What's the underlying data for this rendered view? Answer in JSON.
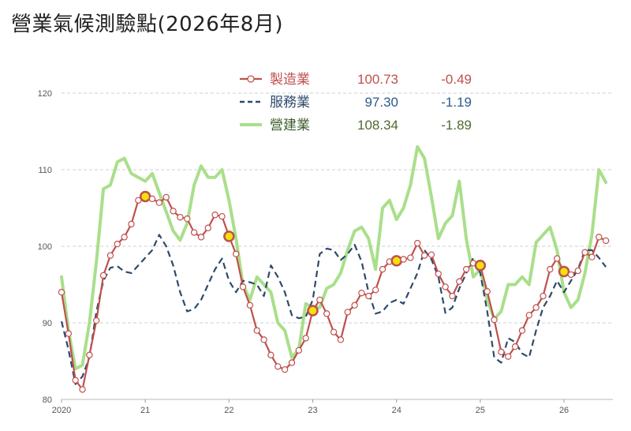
{
  "title": "營業氣候測驗點(2026年8月)",
  "colors": {
    "manufacturing": "#c0504d",
    "services": "#2e4a6b",
    "construction": "#a9df8a",
    "marker_fill": "#ffffff",
    "highlight_fill": "#f2e20a",
    "highlight_stroke": "#c0504d",
    "grid": "#cfcfcf",
    "legend_value_mfg": "#c0504d",
    "legend_value_srv": "#2e5a8a",
    "legend_value_con": "#4f6a2e"
  },
  "legend": [
    {
      "name": "製造業",
      "value": "100.73",
      "change": "-0.49"
    },
    {
      "name": "服務業",
      "value": "97.30",
      "change": "-1.19"
    },
    {
      "name": "營建業",
      "value": "108.34",
      "change": "-1.89"
    }
  ],
  "chart_data": {
    "type": "line",
    "title": "營業氣候測驗點(2026年8月)",
    "xlabel": "",
    "ylabel": "",
    "ylim": [
      80,
      120
    ],
    "yticks": [
      80,
      90,
      100,
      110,
      120
    ],
    "xlim": [
      0,
      79
    ],
    "xticks": [
      {
        "label": "2020",
        "x": 0
      },
      {
        "label": "21",
        "x": 12
      },
      {
        "label": "22",
        "x": 24
      },
      {
        "label": "23",
        "x": 36
      },
      {
        "label": "24",
        "x": 48
      },
      {
        "label": "25",
        "x": 60
      },
      {
        "label": "26",
        "x": 72
      }
    ],
    "grid": true,
    "legend_position": "top",
    "series": [
      {
        "name": "製造業",
        "style": "solid-with-markers",
        "highlights": [
          12,
          24,
          36,
          48,
          60,
          72
        ],
        "values": [
          94,
          88.6,
          82.5,
          81.3,
          85.8,
          90.3,
          96.2,
          98.8,
          100.3,
          101.2,
          102.9,
          106,
          106.5,
          106.2,
          105.7,
          106.4,
          104.6,
          103.8,
          103.6,
          101.8,
          101.2,
          102.4,
          104.1,
          103.9,
          101.3,
          99,
          94.7,
          92.3,
          89,
          87.8,
          85.8,
          84.3,
          83.9,
          84.8,
          86.4,
          88,
          91.6,
          93,
          91.2,
          88.8,
          87.8,
          91.4,
          92.3,
          93.9,
          93.5,
          94.3,
          97,
          98,
          98.1,
          98.3,
          98.5,
          100.4,
          98.8,
          98.9,
          96.4,
          94.7,
          93.5,
          95.4,
          97,
          97.8,
          97.5,
          94.1,
          90.4,
          86.2,
          85.6,
          86.9,
          89,
          91,
          92,
          93.5,
          97,
          98.4,
          96.7,
          96.3,
          96.8,
          99.2,
          98.6,
          101.2,
          100.73
        ]
      },
      {
        "name": "服務業",
        "style": "dashed",
        "values": [
          90.2,
          86.5,
          82,
          83,
          85.5,
          91.5,
          95.5,
          97.2,
          97.4,
          96.7,
          96.5,
          97.5,
          98.5,
          99.5,
          101.5,
          100,
          97.5,
          94,
          91.5,
          91.8,
          93,
          95,
          97,
          98.4,
          95.5,
          94,
          95.5,
          95.3,
          95,
          93.5,
          97.5,
          96,
          94,
          91,
          90.6,
          90.8,
          93,
          99,
          99.7,
          99.5,
          98.2,
          99,
          100.2,
          98,
          94,
          91.2,
          91.5,
          92.6,
          93,
          92.5,
          94.5,
          96.5,
          99.5,
          98.3,
          96,
          91.3,
          92,
          94.5,
          96.5,
          98.5,
          96.5,
          91.5,
          85.5,
          84.8,
          88,
          87.5,
          86,
          85.5,
          89,
          92,
          93.5,
          95.5,
          94,
          95.5,
          97,
          99.5,
          99.5,
          98.5,
          97.3
        ]
      },
      {
        "name": "營建業",
        "style": "solid-thick",
        "values": [
          96,
          89,
          84,
          84.5,
          90,
          98,
          107.5,
          108,
          111,
          111.5,
          109.5,
          109,
          108.5,
          109.5,
          107,
          104.5,
          102,
          100.8,
          103,
          108,
          110.5,
          109,
          109,
          110,
          106,
          101,
          95,
          93,
          96,
          95,
          94,
          90,
          89,
          85.5,
          86.5,
          92.5,
          92,
          92,
          94.5,
          95,
          96.5,
          99.5,
          102,
          102.5,
          101,
          97,
          105,
          106,
          103.5,
          105,
          108,
          113,
          111.5,
          106.5,
          101,
          103,
          104,
          108.5,
          101,
          96,
          97,
          93,
          90.5,
          91.5,
          95,
          95,
          96,
          95,
          100.5,
          101.5,
          102.5,
          99.5,
          94,
          92,
          93,
          96.5,
          101.5,
          110,
          108.34
        ]
      }
    ]
  }
}
